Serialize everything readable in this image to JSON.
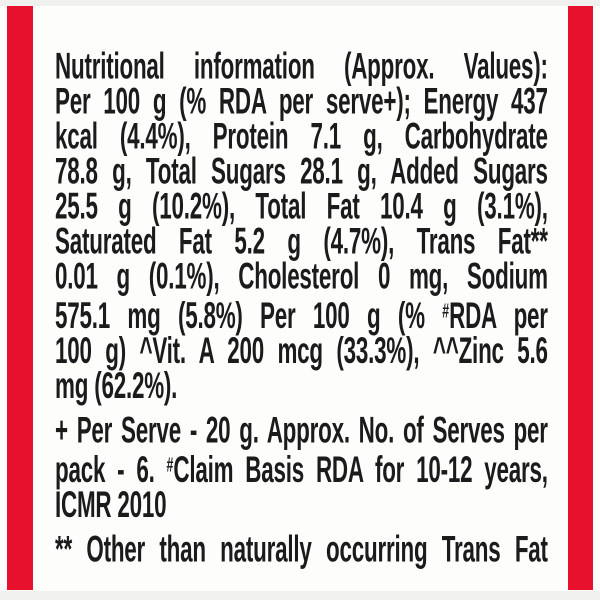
{
  "colors": {
    "accent_red": "#e8112d",
    "text": "#1b1b1b",
    "background": "#fdfdfc"
  },
  "nutrition_facts": {
    "heading": "Nutritional information (Approx. Values)",
    "basis": "Per 100 g (% RDA per serve+)",
    "energy": "437 kcal (4.4%)",
    "protein": "7.1 g",
    "carbohydrate": "78.8 g",
    "total_sugars": "28.1 g",
    "added_sugars": "25.5 g (10.2%)",
    "total_fat": "10.4 g (3.1%)",
    "saturated_fat": "5.2 g (4.7%)",
    "trans_fat": "0.01 g (0.1%)",
    "cholesterol": "0 mg",
    "sodium": "575.1 mg (5.8%)",
    "per_100g_basis": "Per 100 g (% #RDA per 100 g)",
    "vitamin_a": "^Vit. A 200 mcg (33.3%)",
    "zinc": "^^Zinc 5.6 mg (62.2%)",
    "serve_size": "20 g",
    "serves_per_pack": "6",
    "claim_basis": "#Claim Basis RDA for 10-12 years, ICMR 2010",
    "trans_fat_note": "** Other than naturally occurring Trans Fat"
  },
  "label": {
    "lines": [
      {
        "justify": true,
        "gap_before": false,
        "segments": [
          {
            "t": "Nutritional information (Approx. Values):"
          }
        ]
      },
      {
        "justify": true,
        "gap_before": false,
        "segments": [
          {
            "t": "Per 100 g (% RDA per serve+); Energy 437"
          }
        ]
      },
      {
        "justify": true,
        "gap_before": false,
        "segments": [
          {
            "t": "kcal (4.4%), Protein 7.1 g, Carbohydrate"
          }
        ]
      },
      {
        "justify": true,
        "gap_before": false,
        "segments": [
          {
            "t": "78.8 g, Total Sugars 28.1 g, Added Sugars"
          }
        ]
      },
      {
        "justify": true,
        "gap_before": false,
        "segments": [
          {
            "t": "25.5 g (10.2%), Total Fat 10.4 g (3.1%),"
          }
        ]
      },
      {
        "justify": true,
        "gap_before": false,
        "segments": [
          {
            "t": "Saturated Fat 5.2 g (4.7%), Trans Fat**"
          }
        ]
      },
      {
        "justify": true,
        "gap_before": false,
        "segments": [
          {
            "t": "0.01 g (0.1%), Cholesterol 0 mg, Sodium"
          }
        ]
      },
      {
        "justify": true,
        "gap_before": false,
        "segments": [
          {
            "t": "575.1 mg (5.8%) Per 100 g (% "
          },
          {
            "t": "#",
            "sup": true
          },
          {
            "t": "RDA per"
          }
        ]
      },
      {
        "justify": true,
        "gap_before": false,
        "segments": [
          {
            "t": "100 g) ^Vit. A 200 mcg (33.3%), ^^Zinc 5.6"
          }
        ]
      },
      {
        "justify": false,
        "gap_before": false,
        "segments": [
          {
            "t": "mg (62.2%)."
          }
        ]
      },
      {
        "justify": true,
        "gap_before": true,
        "segments": [
          {
            "t": "+ Per Serve - 20 g. Approx. No. of Serves per"
          }
        ]
      },
      {
        "justify": true,
        "gap_before": false,
        "segments": [
          {
            "t": "pack - 6. "
          },
          {
            "t": "#",
            "sup": true
          },
          {
            "t": "Claim Basis RDA for 10-12 years,"
          }
        ]
      },
      {
        "justify": false,
        "gap_before": false,
        "segments": [
          {
            "t": "ICMR 2010"
          }
        ]
      },
      {
        "justify": true,
        "gap_before": true,
        "segments": [
          {
            "t": "** Other than naturally occurring Trans Fat"
          }
        ]
      }
    ]
  }
}
